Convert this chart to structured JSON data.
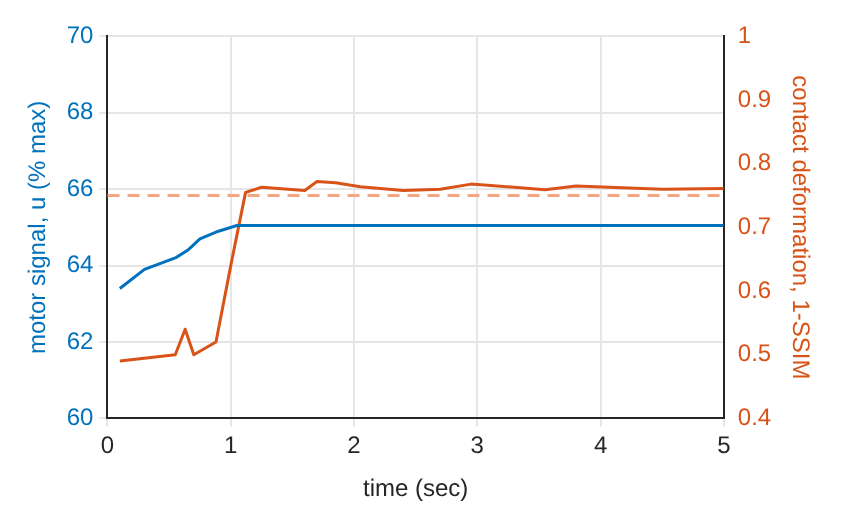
{
  "chart_data": {
    "type": "line",
    "xlabel": "time (sec)",
    "ylabel": "motor signal, u (% max)",
    "y2label": "contact deformation, 1-SSIM",
    "xlim": [
      0,
      5
    ],
    "xticks": [
      0,
      1,
      2,
      3,
      4,
      5
    ],
    "ylim": [
      60,
      70
    ],
    "yticks": [
      60,
      62,
      64,
      66,
      68,
      70
    ],
    "y2lim": [
      0.4,
      1
    ],
    "y2ticks": [
      0.4,
      0.5,
      0.6,
      0.7,
      0.8,
      0.9,
      1
    ],
    "grid": true,
    "legend": false,
    "marker": "none",
    "line_style": "solid",
    "series": [
      {
        "color": "#0072bd",
        "x": [
          0.1,
          0.3,
          0.55,
          0.65,
          0.75,
          0.9,
          1.05,
          5
        ],
        "values": [
          63.4,
          63.9,
          64.2,
          64.4,
          64.7,
          64.9,
          65.05,
          65.05
        ]
      },
      {
        "color": "#d95319",
        "axis": "y2",
        "x": [
          0.1,
          0.55,
          0.63,
          0.7,
          0.88,
          1.0,
          1.12,
          1.25,
          1.6,
          1.7,
          1.85,
          2.05,
          2.4,
          2.7,
          2.95,
          3.3,
          3.55,
          3.8,
          4.5,
          5
        ],
        "values": [
          0.49,
          0.5,
          0.54,
          0.5,
          0.52,
          0.64,
          0.755,
          0.763,
          0.758,
          0.772,
          0.77,
          0.764,
          0.758,
          0.76,
          0.768,
          0.763,
          0.759,
          0.765,
          0.76,
          0.761
        ]
      }
    ],
    "ref_lines": [
      {
        "axis": "y2",
        "value": 0.75,
        "color": "#f4a582",
        "line_style": "dashed"
      }
    ]
  }
}
